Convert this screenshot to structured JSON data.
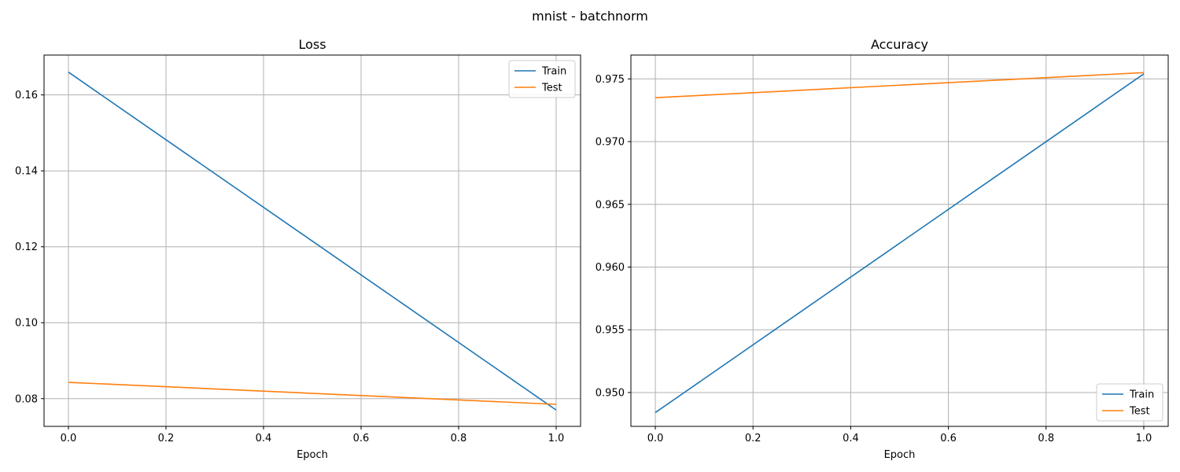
{
  "figure": {
    "title": "mnist - batchnorm"
  },
  "colors": {
    "train": "#1f77b4",
    "test": "#ff7f0e",
    "grid": "#b0b0b0"
  },
  "chart_data": [
    {
      "type": "line",
      "title": "Loss",
      "xlabel": "Epoch",
      "ylabel": "",
      "xlim": [
        -0.05,
        1.05
      ],
      "ylim": [
        0.0727,
        0.1705
      ],
      "x_ticks": [
        0.0,
        0.2,
        0.4,
        0.6,
        0.8,
        1.0
      ],
      "y_ticks": [
        0.08,
        0.1,
        0.12,
        0.14,
        0.16
      ],
      "y_tick_labels": [
        "0.08",
        "0.10",
        "0.12",
        "0.14",
        "0.16"
      ],
      "x_tick_labels": [
        "0.0",
        "0.2",
        "0.4",
        "0.6",
        "0.8",
        "1.0"
      ],
      "grid": true,
      "legend": "top-right",
      "series": [
        {
          "name": "Train",
          "color": "#1f77b4",
          "x": [
            0,
            1
          ],
          "y": [
            0.166,
            0.077
          ]
        },
        {
          "name": "Test",
          "color": "#ff7f0e",
          "x": [
            0,
            1
          ],
          "y": [
            0.0843,
            0.0785
          ]
        }
      ]
    },
    {
      "type": "line",
      "title": "Accuracy",
      "xlabel": "Epoch",
      "ylabel": "",
      "xlim": [
        -0.05,
        1.05
      ],
      "ylim": [
        0.9473,
        0.9769
      ],
      "x_ticks": [
        0.0,
        0.2,
        0.4,
        0.6,
        0.8,
        1.0
      ],
      "y_ticks": [
        0.95,
        0.955,
        0.96,
        0.965,
        0.97,
        0.975
      ],
      "y_tick_labels": [
        "0.950",
        "0.955",
        "0.960",
        "0.965",
        "0.970",
        "0.975"
      ],
      "x_tick_labels": [
        "0.0",
        "0.2",
        "0.4",
        "0.6",
        "0.8",
        "1.0"
      ],
      "grid": true,
      "legend": "bottom-right",
      "series": [
        {
          "name": "Train",
          "color": "#1f77b4",
          "x": [
            0,
            1
          ],
          "y": [
            0.9484,
            0.9754
          ]
        },
        {
          "name": "Test",
          "color": "#ff7f0e",
          "x": [
            0,
            1
          ],
          "y": [
            0.9735,
            0.9755
          ]
        }
      ]
    }
  ]
}
